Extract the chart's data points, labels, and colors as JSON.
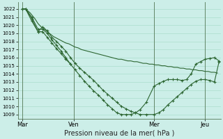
{
  "xlabel": "Pression niveau de la mer( hPa )",
  "background_color": "#cceee8",
  "grid_color": "#aaddcc",
  "line_color": "#2d6632",
  "vline_color": "#557755",
  "ylim": [
    1008.5,
    1022.8
  ],
  "yticks": [
    1009,
    1010,
    1011,
    1012,
    1013,
    1014,
    1015,
    1016,
    1017,
    1018,
    1019,
    1020,
    1021,
    1022
  ],
  "xtick_labels": [
    "Mar",
    "Ven",
    "Mer",
    "Jeu"
  ],
  "xtick_positions": [
    0,
    33,
    85,
    118
  ],
  "xlim": [
    -3,
    128
  ],
  "line1_x": [
    0,
    2,
    5,
    8,
    10,
    12,
    14,
    16,
    18,
    20,
    22,
    24,
    26,
    28,
    30,
    32,
    34,
    36,
    38,
    40,
    42,
    44,
    46,
    48,
    50,
    52,
    54,
    56,
    58,
    60,
    62,
    64,
    66,
    68,
    70,
    72,
    74,
    76,
    78,
    80,
    82,
    84,
    86,
    88,
    90,
    92,
    94,
    96,
    98,
    100,
    102,
    104,
    106,
    108,
    110,
    112,
    114,
    116,
    118,
    120,
    122,
    124,
    126
  ],
  "line1_y": [
    1022,
    1022,
    1021.5,
    1020.8,
    1020.2,
    1019.8,
    1019.5,
    1019.2,
    1018.9,
    1018.6,
    1018.4,
    1018.2,
    1018.0,
    1017.8,
    1017.7,
    1017.5,
    1017.3,
    1017.2,
    1017.0,
    1016.9,
    1016.8,
    1016.7,
    1016.6,
    1016.5,
    1016.4,
    1016.3,
    1016.2,
    1016.1,
    1016.0,
    1015.9,
    1015.8,
    1015.8,
    1015.7,
    1015.6,
    1015.6,
    1015.5,
    1015.5,
    1015.4,
    1015.3,
    1015.3,
    1015.2,
    1015.2,
    1015.1,
    1015.1,
    1015.0,
    1015.0,
    1014.9,
    1014.9,
    1014.8,
    1014.8,
    1014.7,
    1014.7,
    1014.6,
    1014.6,
    1014.5,
    1014.5,
    1014.4,
    1014.4,
    1014.3,
    1014.3,
    1014.2,
    1014.2,
    1014.1
  ],
  "line2_x": [
    0,
    2,
    6,
    10,
    13,
    16,
    19,
    22,
    25,
    28,
    31,
    34,
    37,
    40,
    43,
    46,
    49,
    52,
    55,
    58,
    61,
    64,
    67,
    70,
    73,
    76,
    80,
    85,
    88,
    91,
    94,
    97,
    100,
    103,
    106,
    109,
    112,
    115,
    118,
    121,
    124,
    127
  ],
  "line2_y": [
    1022,
    1022,
    1020.5,
    1019.2,
    1019.8,
    1019.3,
    1018.5,
    1018.0,
    1017.4,
    1016.8,
    1016.0,
    1015.3,
    1014.7,
    1014.2,
    1013.7,
    1013.2,
    1012.6,
    1012.0,
    1011.5,
    1011.0,
    1010.5,
    1010.0,
    1009.7,
    1009.4,
    1009.2,
    1009.0,
    1009.0,
    1009.0,
    1009.2,
    1009.6,
    1010.2,
    1010.7,
    1011.2,
    1011.7,
    1012.2,
    1012.7,
    1013.1,
    1013.3,
    1013.3,
    1013.2,
    1013.0,
    1015.5
  ],
  "line3_x": [
    0,
    2,
    6,
    10,
    13,
    16,
    19,
    22,
    25,
    28,
    31,
    34,
    37,
    40,
    43,
    46,
    49,
    52,
    55,
    58,
    61,
    64,
    67,
    70,
    73,
    76,
    80,
    85,
    88,
    91,
    94,
    97,
    100,
    103,
    106,
    109,
    112,
    115,
    118,
    121,
    124,
    127
  ],
  "line3_y": [
    1022,
    1022,
    1021.0,
    1019.5,
    1019.5,
    1019.0,
    1018.2,
    1017.5,
    1016.8,
    1016.0,
    1015.2,
    1014.5,
    1013.8,
    1013.1,
    1012.5,
    1011.9,
    1011.4,
    1010.8,
    1010.2,
    1009.7,
    1009.2,
    1009.0,
    1009.0,
    1009.0,
    1009.2,
    1009.6,
    1010.5,
    1012.5,
    1012.8,
    1013.1,
    1013.3,
    1013.3,
    1013.3,
    1013.2,
    1013.3,
    1014.0,
    1015.2,
    1015.5,
    1015.8,
    1015.9,
    1016.0,
    1015.6
  ],
  "line4_x": [
    0,
    2,
    6,
    10,
    13,
    16,
    19,
    22,
    25,
    28,
    31
  ],
  "line4_y": [
    1022,
    1022,
    1020.8,
    1019.2,
    1019.2,
    1018.5,
    1017.8,
    1017.1,
    1016.5,
    1015.8,
    1015.2
  ]
}
